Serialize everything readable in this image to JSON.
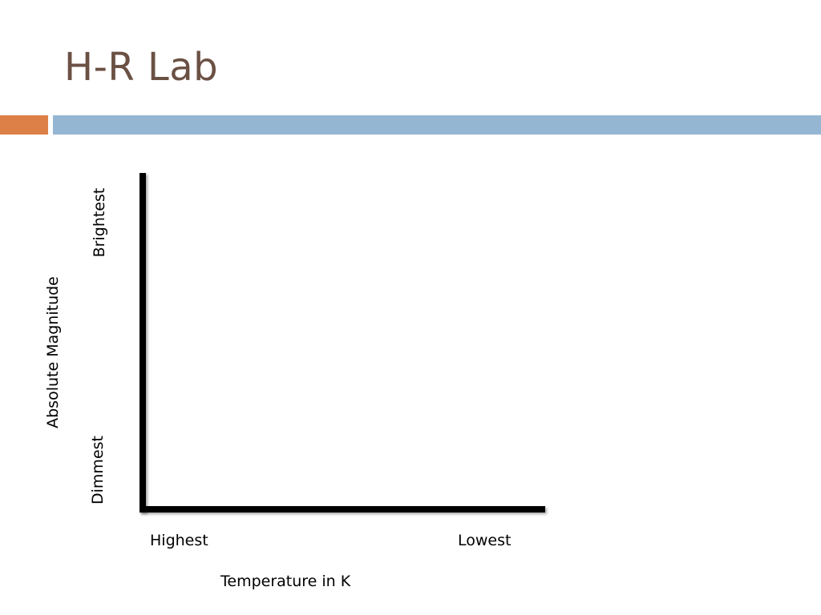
{
  "slide": {
    "title": "H-R Lab"
  },
  "colors": {
    "title": "#6b5044",
    "accent_bar": "#dd8047",
    "main_bar": "#94b6d2",
    "axis": "#000000"
  },
  "diagram": {
    "y_axis_title": "Absolute Magnitude",
    "y_top_label": "Brightest",
    "y_bottom_label": "Dimmest",
    "x_axis_title": "Temperature in K",
    "x_left_label": "Highest",
    "x_right_label": "Lowest"
  }
}
